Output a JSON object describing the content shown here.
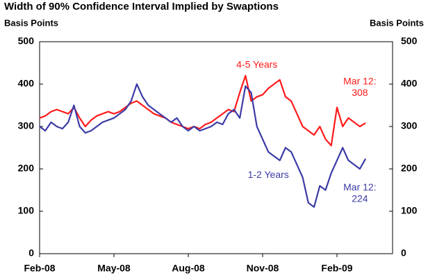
{
  "chart_data": {
    "type": "line",
    "title": "Width of 90% Confidence Interval Implied by Swaptions",
    "ylabel": "Basis Points",
    "y2label": "Basis Points",
    "categories": [
      "Feb-08",
      null,
      null,
      null,
      null,
      null,
      null,
      null,
      null,
      null,
      null,
      null,
      null,
      "May-08",
      null,
      null,
      null,
      null,
      null,
      null,
      null,
      null,
      null,
      null,
      null,
      null,
      "Aug-08",
      null,
      null,
      null,
      null,
      null,
      null,
      null,
      null,
      null,
      null,
      null,
      null,
      "Nov-08",
      null,
      null,
      null,
      null,
      null,
      null,
      null,
      null,
      null,
      null,
      null,
      null,
      "Feb-09",
      null,
      null,
      null,
      null,
      null
    ],
    "series": [
      {
        "name": "4-5 Years",
        "color": "#ff1a1a",
        "values": [
          320,
          325,
          335,
          340,
          335,
          330,
          345,
          320,
          300,
          315,
          325,
          330,
          335,
          330,
          335,
          345,
          355,
          360,
          350,
          340,
          330,
          325,
          320,
          310,
          305,
          300,
          295,
          300,
          295,
          305,
          310,
          320,
          330,
          340,
          335,
          380,
          420,
          360,
          370,
          375,
          390,
          400,
          410,
          370,
          360,
          330,
          300,
          290,
          280,
          300,
          270,
          255,
          345,
          300,
          320,
          310,
          300,
          308
        ]
      },
      {
        "name": "1-2 Years",
        "color": "#3b3ba6",
        "values": [
          300,
          290,
          310,
          300,
          295,
          310,
          350,
          300,
          285,
          290,
          300,
          310,
          315,
          320,
          330,
          340,
          360,
          400,
          370,
          350,
          340,
          330,
          320,
          310,
          320,
          300,
          290,
          300,
          290,
          295,
          300,
          310,
          305,
          330,
          340,
          320,
          395,
          380,
          300,
          270,
          240,
          230,
          220,
          250,
          240,
          210,
          180,
          120,
          110,
          160,
          150,
          190,
          220,
          250,
          220,
          210,
          200,
          224
        ]
      }
    ],
    "annotations": [
      {
        "text": "Mar 12:",
        "series": 0
      },
      {
        "text": "308",
        "series": 0
      },
      {
        "text": "Mar 12:",
        "series": 1
      },
      {
        "text": "224",
        "series": 1
      }
    ],
    "ylim": [
      0,
      500
    ],
    "yticks": [
      0,
      100,
      200,
      300,
      400,
      500
    ],
    "y2lim": [
      0,
      500
    ],
    "y2ticks": [
      0,
      100,
      200,
      300,
      400,
      500
    ]
  }
}
